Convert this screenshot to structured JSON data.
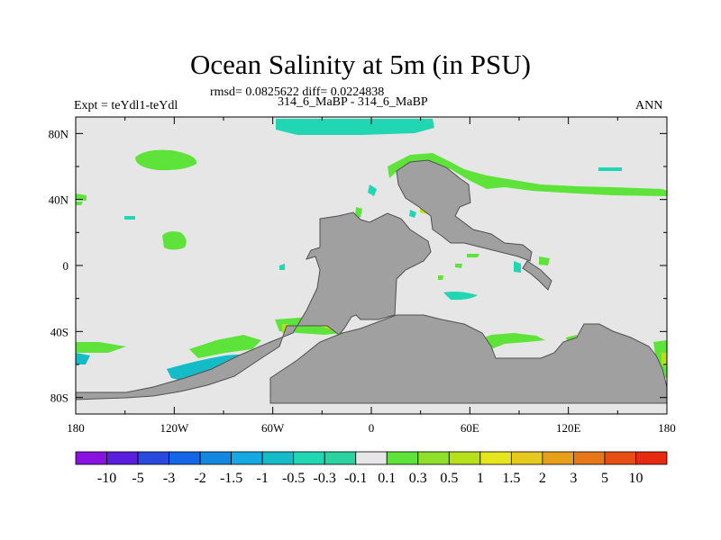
{
  "title": "Ocean Salinity at 5m (in PSU)",
  "stats": "rmsd= 0.0825622 diff= 0.0224838",
  "expt": "Expt = teYdl1-teYdl",
  "case": "314_6_MaBP - 314_6_MaBP",
  "season": "ANN",
  "colors": {
    "land": "#a0a0a0",
    "ocean_neutral": "#e6e6e6",
    "neg_small": "#20d6b3",
    "neg_medium": "#14bcc8",
    "pos_small": "#5ee33a",
    "pos_medium": "#b6e01a",
    "pos_large": "#e6e61e"
  },
  "chart_data": {
    "type": "heatmap",
    "title": "Ocean Salinity at 5m (in PSU)",
    "x_ticks": [
      "180",
      "120W",
      "60W",
      "0",
      "60E",
      "120E",
      "180"
    ],
    "x_values": [
      -180,
      -120,
      -60,
      0,
      60,
      120,
      180
    ],
    "y_ticks": [
      "80N",
      "40N",
      "0",
      "40S",
      "80S"
    ],
    "y_values": [
      80,
      40,
      0,
      -40,
      -80
    ],
    "xlim": [
      -180,
      180
    ],
    "ylim": [
      -90,
      90
    ],
    "colorbar": {
      "labels": [
        "-10",
        "-5",
        "-3",
        "-2",
        "-1.5",
        "-1",
        "-0.5",
        "-0.3",
        "-0.1",
        "0.1",
        "0.3",
        "0.5",
        "1",
        "1.5",
        "2",
        "3",
        "5",
        "10"
      ],
      "colors": [
        "#8a12e0",
        "#5a1edc",
        "#2a4ade",
        "#1466e6",
        "#1488e0",
        "#16a8e0",
        "#14bcc8",
        "#20d6b3",
        "#2ad2a0",
        "#e6e6e6",
        "#5ee33a",
        "#8ee02a",
        "#b6e01a",
        "#e6e61e",
        "#e6c81e",
        "#e6a01a",
        "#e6781a",
        "#e64e14",
        "#e62a10"
      ]
    }
  }
}
